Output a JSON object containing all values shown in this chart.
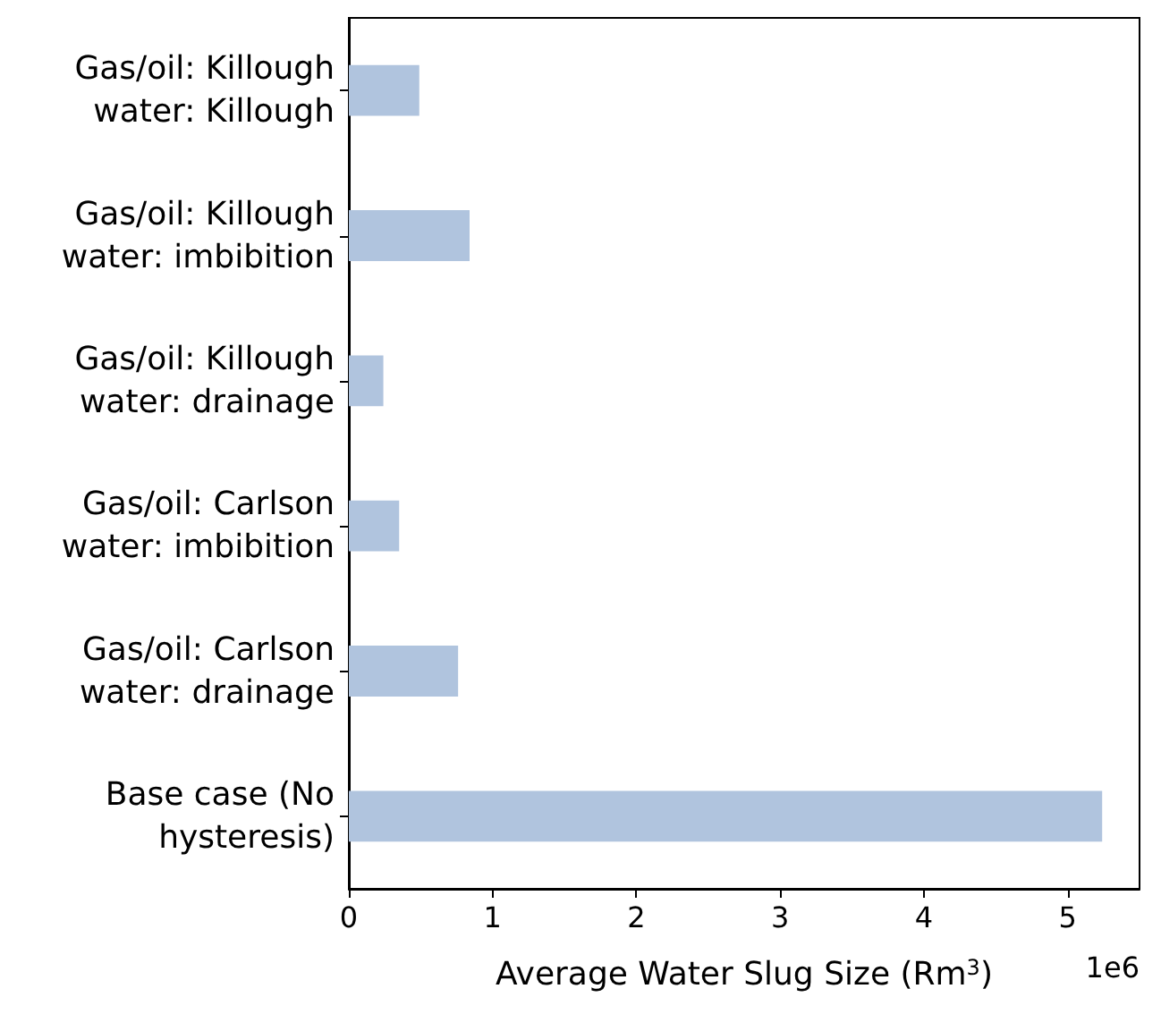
{
  "chart_data": {
    "type": "bar",
    "orientation": "horizontal",
    "categories": [
      "Gas/oil: Killough\nwater: Killough",
      "Gas/oil: Killough\nwater: imbibition",
      "Gas/oil: Killough\nwater: drainage",
      "Gas/oil: Carlson\nwater: imbibition",
      "Gas/oil: Carlson\nwater: drainage",
      "Base case (No\nhysteresis)"
    ],
    "values": [
      0.49,
      0.84,
      0.24,
      0.35,
      0.76,
      5.24
    ],
    "color": "#b0c4de",
    "xlabel": "Average Water Slug Size (Rm$^{3}$)",
    "xlim": [
      0,
      5.5
    ],
    "xticks": [
      0,
      1,
      2,
      3,
      4,
      5
    ],
    "annotations": [
      "1e6"
    ],
    "grid": false
  }
}
